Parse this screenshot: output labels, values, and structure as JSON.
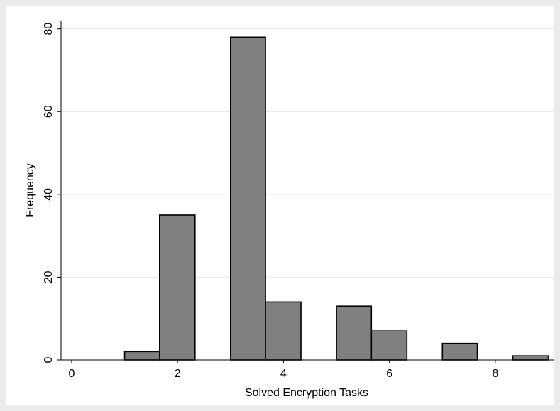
{
  "chart_data": {
    "type": "bar",
    "subtype": "histogram",
    "title": "",
    "xlabel": "Solved Encryption Tasks",
    "ylabel": "Frequency",
    "xlim": [
      -0.2,
      9.1
    ],
    "ylim": [
      0,
      82
    ],
    "xticks": [
      0,
      2,
      4,
      6,
      8
    ],
    "yticks": [
      0,
      20,
      40,
      60,
      80
    ],
    "grid": true,
    "bar_color": "#808080",
    "bar_edge_color": "#000000",
    "background_color": "#ffffff",
    "outer_color": "#ebebeb",
    "bins": [
      {
        "start": 1.0,
        "end": 1.66,
        "value": 2
      },
      {
        "start": 1.66,
        "end": 2.33,
        "value": 35
      },
      {
        "start": 3.0,
        "end": 3.66,
        "value": 78
      },
      {
        "start": 3.66,
        "end": 4.33,
        "value": 14
      },
      {
        "start": 5.0,
        "end": 5.66,
        "value": 13
      },
      {
        "start": 5.66,
        "end": 6.33,
        "value": 7
      },
      {
        "start": 7.0,
        "end": 7.66,
        "value": 4
      },
      {
        "start": 8.33,
        "end": 9.0,
        "value": 1
      }
    ]
  }
}
